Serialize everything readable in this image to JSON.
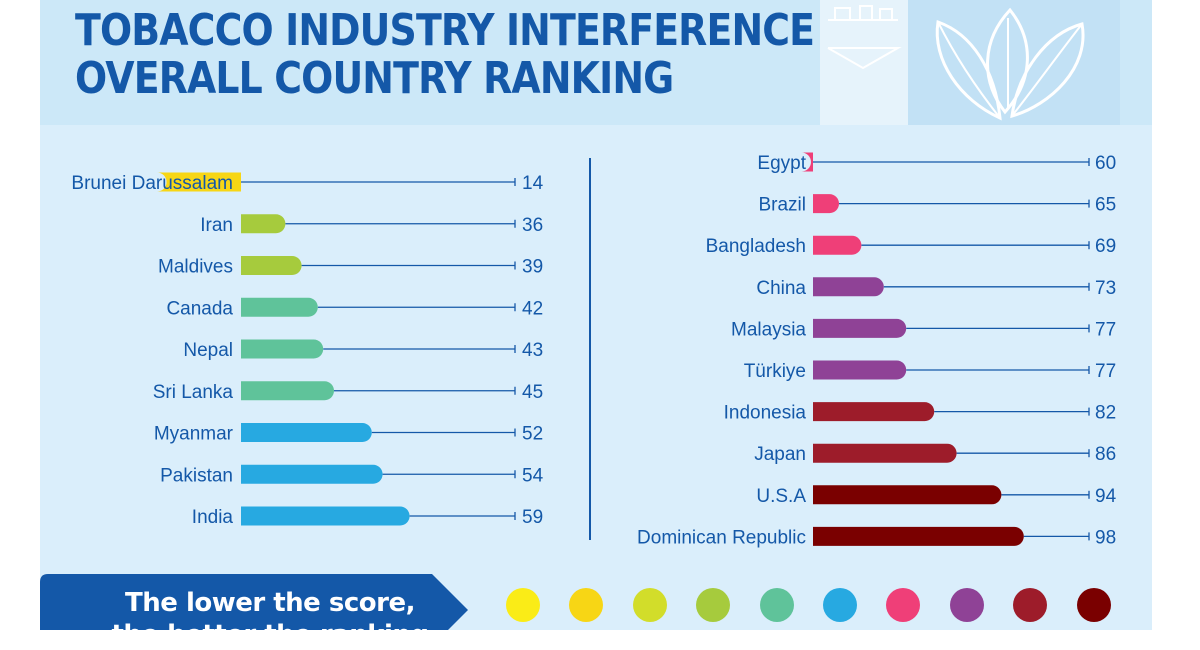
{
  "chart_data": {
    "type": "bar",
    "title": [
      "TOBACCO INDUSTRY INTERFERENCE",
      "OVERALL COUNTRY RANKING"
    ],
    "xlabel": "",
    "ylabel": "",
    "xlim": [
      0,
      100
    ],
    "groups": [
      {
        "position": "left",
        "categories": [
          "Brunei Darussalam",
          "Iran",
          "Maldives",
          "Canada",
          "Nepal",
          "Sri Lanka",
          "Myanmar",
          "Pakistan",
          "India"
        ],
        "values": [
          14,
          36,
          39,
          42,
          43,
          45,
          52,
          54,
          59
        ],
        "colors": [
          "#f7d615",
          "#a6cb3d",
          "#a6cb3d",
          "#5fc39a",
          "#5fc39a",
          "#5fc39a",
          "#27a9e1",
          "#27a9e1",
          "#27a9e1"
        ]
      },
      {
        "position": "right",
        "categories": [
          "Egypt",
          "Brazil",
          "Bangladesh",
          "China",
          "Malaysia",
          "Türkiye",
          "Indonesia",
          "Japan",
          "U.S.A",
          "Dominican Republic"
        ],
        "values": [
          60,
          65,
          69,
          73,
          77,
          77,
          82,
          86,
          94,
          98
        ],
        "colors": [
          "#ef3f78",
          "#ef3f78",
          "#ef3f78",
          "#8f4296",
          "#8f4296",
          "#8f4296",
          "#9d1c2a",
          "#9d1c2a",
          "#7a0000",
          "#7a0000"
        ]
      }
    ],
    "legend": {
      "text": [
        "The lower the score,",
        "the better the ranking"
      ],
      "colors": [
        "#faec17",
        "#f7d615",
        "#d2dd2a",
        "#a6cb3d",
        "#5fc39a",
        "#27a9e1",
        "#ef3f78",
        "#8f4296",
        "#9d1c2a",
        "#7a0000"
      ]
    }
  }
}
